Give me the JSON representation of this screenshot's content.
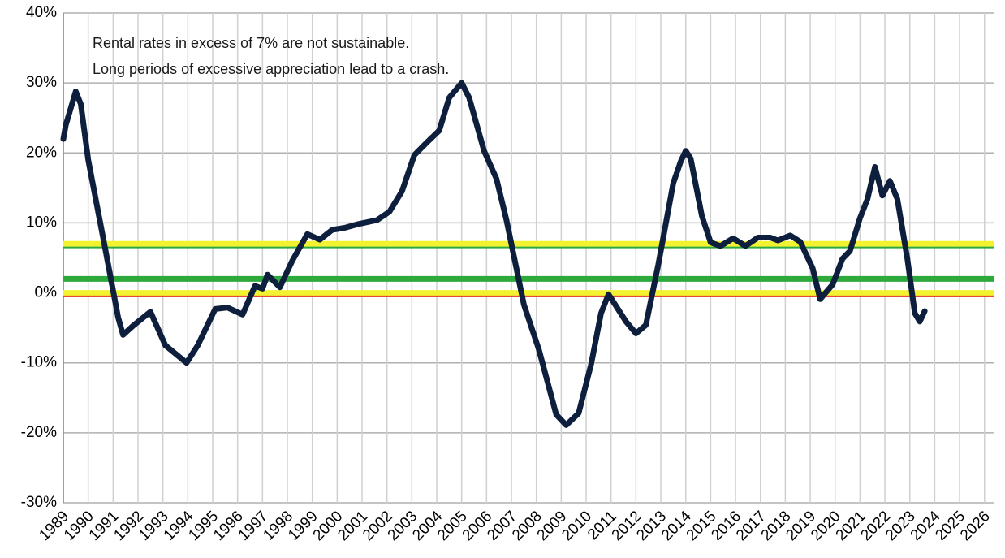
{
  "chart_data": {
    "type": "line",
    "annotations": [
      "Rental rates in excess of 7% are not sustainable.",
      "Long periods of excessive appreciation lead to a crash."
    ],
    "xlim": [
      1989,
      2026.4
    ],
    "xticks": [
      1989,
      1990,
      1991,
      1992,
      1993,
      1994,
      1995,
      1996,
      1997,
      1998,
      1999,
      2000,
      2001,
      2002,
      2003,
      2004,
      2005,
      2006,
      2007,
      2008,
      2009,
      2010,
      2011,
      2012,
      2013,
      2014,
      2015,
      2016,
      2017,
      2018,
      2019,
      2020,
      2021,
      2022,
      2023,
      2024,
      2025,
      2026
    ],
    "ylim": [
      -30,
      40
    ],
    "yticks": [
      {
        "value": -30,
        "label": "-30%"
      },
      {
        "value": -20,
        "label": "-20%"
      },
      {
        "value": -10,
        "label": "-10%"
      },
      {
        "value": 0,
        "label": "0%"
      },
      {
        "value": 10,
        "label": "10%"
      },
      {
        "value": 20,
        "label": "20%"
      },
      {
        "value": 30,
        "label": "30%"
      },
      {
        "value": 40,
        "label": "40%"
      }
    ],
    "grid": true,
    "reference_lines": [
      {
        "value": 7,
        "color": "#f2f230",
        "width": 7
      },
      {
        "value": 6.5,
        "color": "#2eaa3c",
        "width": 2
      },
      {
        "value": 2,
        "color": "#2eaa3c",
        "width": 7
      },
      {
        "value": 0,
        "color": "#f2f230",
        "width": 7
      },
      {
        "value": -0.5,
        "color": "#e0301e",
        "width": 2
      }
    ],
    "series": [
      {
        "color": "#0d1f3c",
        "x": [
          1989,
          1989.1,
          1989.5,
          1989.7,
          1990.0,
          1990.7,
          1991.2,
          1991.4,
          1991.8,
          1992.5,
          1993.1,
          1993.95,
          1994.4,
          1995.1,
          1995.6,
          1996.2,
          1996.7,
          1997.0,
          1997.2,
          1997.7,
          1998.2,
          1998.8,
          1999.3,
          1999.8,
          2000.3,
          2000.8,
          2001.6,
          2002.1,
          2002.6,
          2003.1,
          2003.6,
          2004.1,
          2004.5,
          2005.0,
          2005.3,
          2005.9,
          2006.4,
          2006.8,
          2007.5,
          2008.1,
          2008.8,
          2009.2,
          2009.7,
          2010.2,
          2010.6,
          2010.9,
          2011.6,
          2012.0,
          2012.4,
          2012.9,
          2013.5,
          2013.8,
          2014.0,
          2014.2,
          2014.65,
          2015.0,
          2015.4,
          2015.9,
          2016.4,
          2016.9,
          2017.4,
          2017.7,
          2018.2,
          2018.6,
          2019.1,
          2019.4,
          2019.9,
          2020.3,
          2020.6,
          2021.0,
          2021.3,
          2021.6,
          2021.9,
          2022.2,
          2022.5,
          2022.9,
          2023.2,
          2023.4,
          2023.6
        ],
        "values": [
          22,
          24,
          28.8,
          27,
          19,
          6,
          -3.5,
          -6,
          -4.7,
          -2.7,
          -7.5,
          -10,
          -7.5,
          -2.3,
          -2.1,
          -3.1,
          1,
          0.6,
          2.6,
          0.8,
          4.6,
          8.4,
          7.6,
          9,
          9.3,
          9.8,
          10.4,
          11.6,
          14.5,
          19.7,
          21.5,
          23.2,
          27.9,
          30,
          27.9,
          20.3,
          16.3,
          10.4,
          -1.7,
          -8.1,
          -17.4,
          -18.9,
          -17.2,
          -10.2,
          -2.9,
          -0.2,
          -4.1,
          -5.8,
          -4.6,
          4.1,
          15.7,
          18.8,
          20.3,
          19.2,
          11,
          7.2,
          6.7,
          7.8,
          6.7,
          7.9,
          7.9,
          7.5,
          8.2,
          7.3,
          3.5,
          -0.9,
          1.2,
          4.9,
          6,
          10.7,
          13.4,
          18,
          13.9,
          16,
          13.4,
          4.9,
          -2.9,
          -4.1,
          -2.6
        ]
      }
    ]
  }
}
